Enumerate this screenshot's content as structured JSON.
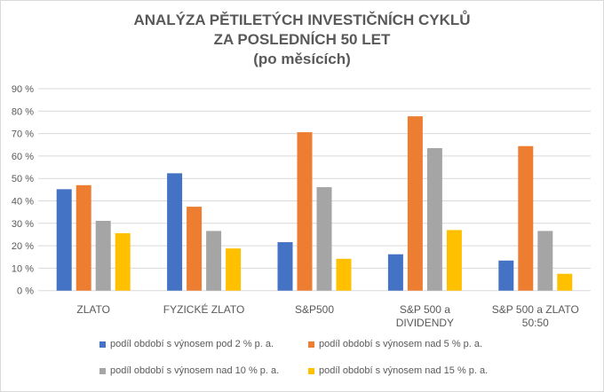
{
  "chart_data": {
    "type": "bar",
    "title_lines": [
      "ANALÝZA PĚTILETÝCH INVESTIČNÍCH CYKLŮ",
      "ZA POSLEDNÍCH 50 LET",
      "(po měsících)"
    ],
    "categories": [
      [
        "ZLATO"
      ],
      [
        "FYZICKÉ ZLATO"
      ],
      [
        "S&P500"
      ],
      [
        "S&P 500 a",
        "DIVIDENDY"
      ],
      [
        "S&P 500 a ZLATO",
        "50:50"
      ]
    ],
    "ylim": [
      0,
      90
    ],
    "yticks": [
      "0 %",
      "10 %",
      "20 %",
      "30 %",
      "40 %",
      "50 %",
      "60 %",
      "70 %",
      "80 %",
      "90 %"
    ],
    "grid": true,
    "legend_position": "bottom",
    "series": [
      {
        "name": "podíl období s výnosem pod 2  % p. a.",
        "color": "#4472c4",
        "values": [
          45.2,
          52.3,
          21.6,
          16.2,
          13.4
        ]
      },
      {
        "name": "podíl období s výnosem nad 5 % p. a.",
        "color": "#ed7d31",
        "values": [
          47.0,
          37.4,
          70.6,
          77.7,
          64.4
        ]
      },
      {
        "name": "podíl období s výnosem nad 10 % p. a.",
        "color": "#a5a5a5",
        "values": [
          31.1,
          26.6,
          46.1,
          63.5,
          26.6
        ]
      },
      {
        "name": "podíl období s výnosem nad 15 % p. a.",
        "color": "#ffc000",
        "values": [
          25.6,
          18.8,
          14.2,
          27.0,
          7.5
        ]
      }
    ]
  }
}
